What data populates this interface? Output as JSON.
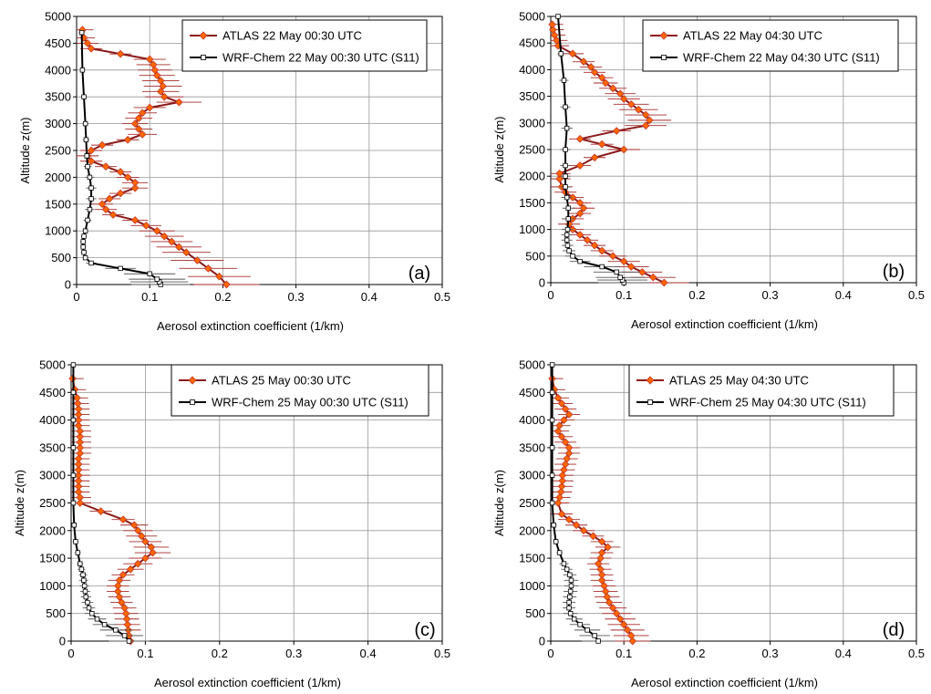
{
  "chart_data": [
    {
      "type": "line",
      "panel_label": "(a)",
      "xlabel": "Aerosol extinction coefficient (1/km)",
      "ylabel": "Altitude z(m)",
      "xlim": [
        0,
        0.5
      ],
      "ylim": [
        0,
        5000
      ],
      "xticks": [
        "0",
        "0.1",
        "0.2",
        "0.3",
        "0.4",
        "0.5"
      ],
      "yticks": [
        "0",
        "500",
        "1000",
        "1500",
        "2000",
        "2500",
        "3000",
        "3500",
        "4000",
        "4500",
        "5000"
      ],
      "grid": true,
      "legend_position": "top-right",
      "series": [
        {
          "name": "ATLAS 22 May 00:30 UTC",
          "color": "#8b1a1a",
          "marker_color": "#ff6600",
          "marker": "diamond",
          "x": [
            0.205,
            0.195,
            0.18,
            0.165,
            0.15,
            0.14,
            0.13,
            0.12,
            0.11,
            0.095,
            0.08,
            0.05,
            0.04,
            0.035,
            0.045,
            0.06,
            0.08,
            0.08,
            0.07,
            0.06,
            0.04,
            0.02,
            0.015,
            0.02,
            0.035,
            0.07,
            0.09,
            0.085,
            0.08,
            0.085,
            0.09,
            0.1,
            0.14,
            0.12,
            0.115,
            0.118,
            0.115,
            0.11,
            0.107,
            0.105,
            0.1,
            0.06,
            0.02,
            0.015,
            0.01,
            0.008
          ],
          "y": [
            0,
            150,
            300,
            450,
            600,
            700,
            800,
            900,
            1000,
            1100,
            1200,
            1300,
            1400,
            1500,
            1600,
            1700,
            1800,
            1900,
            2000,
            2100,
            2200,
            2300,
            2400,
            2500,
            2600,
            2700,
            2800,
            2900,
            3000,
            3100,
            3200,
            3300,
            3400,
            3500,
            3600,
            3700,
            3800,
            3900,
            4000,
            4100,
            4200,
            4300,
            4400,
            4500,
            4600,
            4750
          ]
        },
        {
          "name": "WRF-Chem 22 May 00:30 UTC (S11)",
          "color": "#000000",
          "marker_color": "#ffffff",
          "marker": "square",
          "x": [
            0.115,
            0.113,
            0.11,
            0.1,
            0.06,
            0.02,
            0.012,
            0.01,
            0.009,
            0.009,
            0.01,
            0.012,
            0.015,
            0.018,
            0.02,
            0.02,
            0.018,
            0.015,
            0.014,
            0.013,
            0.012,
            0.01,
            0.008,
            0.007
          ],
          "y": [
            0,
            50,
            100,
            200,
            300,
            400,
            500,
            600,
            700,
            800,
            900,
            1000,
            1200,
            1400,
            1600,
            1800,
            2000,
            2200,
            2400,
            2700,
            3000,
            3500,
            4000,
            4700
          ]
        }
      ]
    },
    {
      "type": "line",
      "panel_label": "(b)",
      "xlabel": "Aerosol extinction coefficient (1/km)",
      "ylabel": "Altitude z(m)",
      "xlim": [
        0,
        0.5
      ],
      "ylim": [
        0,
        5000
      ],
      "xticks": [
        "0",
        "0.1",
        "0.2",
        "0.3",
        "0.4",
        "0.5"
      ],
      "yticks": [
        "0",
        "500",
        "1000",
        "1500",
        "2000",
        "2500",
        "3000",
        "3500",
        "4000",
        "4500",
        "5000"
      ],
      "grid": true,
      "legend_position": "top-right",
      "series": [
        {
          "name": "ATLAS 22 May 04:30 UTC",
          "color": "#8b1a1a",
          "marker_color": "#ff6600",
          "marker": "diamond",
          "x": [
            0.155,
            0.14,
            0.125,
            0.11,
            0.1,
            0.085,
            0.07,
            0.06,
            0.05,
            0.04,
            0.03,
            0.025,
            0.03,
            0.04,
            0.045,
            0.04,
            0.03,
            0.02,
            0.015,
            0.012,
            0.012,
            0.04,
            0.06,
            0.1,
            0.07,
            0.04,
            0.09,
            0.13,
            0.135,
            0.13,
            0.12,
            0.11,
            0.1,
            0.095,
            0.085,
            0.075,
            0.07,
            0.06,
            0.055,
            0.045,
            0.03,
            0.01,
            0.008,
            0.005,
            0.003,
            0.002
          ],
          "y": [
            0,
            100,
            200,
            300,
            400,
            500,
            600,
            700,
            800,
            900,
            1000,
            1100,
            1200,
            1300,
            1400,
            1500,
            1600,
            1700,
            1800,
            1950,
            2050,
            2200,
            2350,
            2500,
            2600,
            2700,
            2850,
            2950,
            3050,
            3150,
            3250,
            3350,
            3450,
            3550,
            3650,
            3750,
            3850,
            3950,
            4050,
            4150,
            4300,
            4450,
            4550,
            4650,
            4750,
            4850
          ]
        },
        {
          "name": "WRF-Chem 22 May 04:30 UTC (S11)",
          "color": "#000000",
          "marker_color": "#ffffff",
          "marker": "square",
          "x": [
            0.1,
            0.098,
            0.095,
            0.09,
            0.07,
            0.04,
            0.03,
            0.025,
            0.023,
            0.022,
            0.022,
            0.023,
            0.024,
            0.024,
            0.022,
            0.02,
            0.02,
            0.02,
            0.02,
            0.022,
            0.02,
            0.018,
            0.014,
            0.01
          ],
          "y": [
            0,
            50,
            100,
            200,
            300,
            400,
            500,
            600,
            700,
            800,
            900,
            1000,
            1200,
            1400,
            1600,
            1800,
            2000,
            2200,
            2500,
            2900,
            3300,
            3800,
            4300,
            5000
          ]
        }
      ]
    },
    {
      "type": "line",
      "panel_label": "(c)",
      "xlabel": "Aerosol extinction coefficient (1/km)",
      "ylabel": "Altitude z(m)",
      "xlim": [
        0,
        0.5
      ],
      "ylim": [
        0,
        5000
      ],
      "xticks": [
        "0",
        "0.1",
        "0.2",
        "0.3",
        "0.4",
        "0.5"
      ],
      "yticks": [
        "0",
        "500",
        "1000",
        "1500",
        "2000",
        "2500",
        "3000",
        "3500",
        "4000",
        "4500",
        "5000"
      ],
      "grid": true,
      "legend_position": "top-right",
      "series": [
        {
          "name": "ATLAS 25 May 00:30 UTC",
          "color": "#8b1a1a",
          "marker_color": "#ff6600",
          "marker": "diamond",
          "x": [
            0.08,
            0.078,
            0.077,
            0.076,
            0.075,
            0.074,
            0.072,
            0.068,
            0.065,
            0.063,
            0.063,
            0.065,
            0.07,
            0.08,
            0.09,
            0.1,
            0.11,
            0.108,
            0.1,
            0.095,
            0.09,
            0.085,
            0.07,
            0.04,
            0.012,
            0.012,
            0.01,
            0.01,
            0.01,
            0.01,
            0.01,
            0.01,
            0.01,
            0.012,
            0.012,
            0.012,
            0.012,
            0.012,
            0.01,
            0.01,
            0.01,
            0.01,
            0.009,
            0.008,
            0.005,
            0.002
          ],
          "y": [
            0,
            100,
            200,
            300,
            400,
            500,
            600,
            700,
            800,
            900,
            1000,
            1100,
            1200,
            1300,
            1400,
            1500,
            1600,
            1700,
            1800,
            1900,
            2000,
            2100,
            2200,
            2350,
            2500,
            2600,
            2700,
            2800,
            2900,
            3000,
            3100,
            3200,
            3300,
            3400,
            3500,
            3600,
            3700,
            3800,
            3900,
            4000,
            4100,
            4200,
            4300,
            4400,
            4550,
            4750
          ]
        },
        {
          "name": "WRF-Chem 25 May 00:30 UTC (S11)",
          "color": "#000000",
          "marker_color": "#ffffff",
          "marker": "square",
          "x": [
            0.078,
            0.072,
            0.06,
            0.045,
            0.035,
            0.028,
            0.024,
            0.022,
            0.02,
            0.019,
            0.018,
            0.017,
            0.016,
            0.014,
            0.012,
            0.009,
            0.006,
            0.004,
            0.003,
            0.003,
            0.003,
            0.003,
            0.003,
            0.003
          ],
          "y": [
            0,
            100,
            200,
            300,
            400,
            500,
            600,
            700,
            800,
            900,
            1000,
            1100,
            1200,
            1300,
            1400,
            1600,
            1800,
            2100,
            2500,
            3000,
            3500,
            4000,
            4500,
            5000
          ]
        }
      ]
    },
    {
      "type": "line",
      "panel_label": "(d)",
      "xlabel": "Aerosol extinction coefficient (1/km)",
      "ylabel": "Altitude  z(m)",
      "xlim": [
        0,
        0.5
      ],
      "ylim": [
        0,
        5000
      ],
      "xticks": [
        "0",
        "0.1",
        "0.2",
        "0.3",
        "0.4",
        "0.5"
      ],
      "yticks": [
        "0",
        "500",
        "1000",
        "1500",
        "2000",
        "2500",
        "3000",
        "3500",
        "4000",
        "4500",
        "5000"
      ],
      "grid": true,
      "legend_position": "top-right",
      "series": [
        {
          "name": "ATLAS 25 May 04:30 UTC",
          "color": "#8b1a1a",
          "marker_color": "#ff6600",
          "marker": "diamond",
          "x": [
            0.112,
            0.11,
            0.105,
            0.1,
            0.095,
            0.09,
            0.085,
            0.08,
            0.077,
            0.075,
            0.073,
            0.07,
            0.07,
            0.068,
            0.065,
            0.068,
            0.07,
            0.078,
            0.07,
            0.058,
            0.045,
            0.035,
            0.025,
            0.015,
            0.01,
            0.012,
            0.014,
            0.015,
            0.016,
            0.016,
            0.018,
            0.02,
            0.022,
            0.025,
            0.025,
            0.02,
            0.015,
            0.01,
            0.012,
            0.018,
            0.025,
            0.02,
            0.015,
            0.01,
            0.005,
            0.002
          ],
          "y": [
            0,
            100,
            200,
            300,
            400,
            500,
            600,
            700,
            800,
            900,
            1000,
            1100,
            1200,
            1300,
            1400,
            1500,
            1600,
            1700,
            1800,
            1900,
            2000,
            2100,
            2200,
            2300,
            2500,
            2600,
            2700,
            2800,
            2900,
            3000,
            3100,
            3200,
            3300,
            3400,
            3500,
            3600,
            3700,
            3800,
            3900,
            4000,
            4100,
            4200,
            4300,
            4400,
            4550,
            4750
          ]
        },
        {
          "name": "WRF-Chem 25 May 04:30 UTC (S11)",
          "color": "#000000",
          "marker_color": "#ffffff",
          "marker": "square",
          "x": [
            0.065,
            0.06,
            0.05,
            0.04,
            0.032,
            0.027,
            0.025,
            0.025,
            0.026,
            0.027,
            0.028,
            0.028,
            0.026,
            0.022,
            0.018,
            0.012,
            0.007,
            0.004,
            0.002,
            0.002,
            0.002,
            0.002,
            0.002,
            0.002
          ],
          "y": [
            0,
            100,
            200,
            300,
            400,
            500,
            600,
            700,
            800,
            900,
            1000,
            1100,
            1200,
            1300,
            1400,
            1600,
            1800,
            2100,
            2500,
            3000,
            3500,
            4000,
            4500,
            5000
          ]
        }
      ]
    }
  ]
}
